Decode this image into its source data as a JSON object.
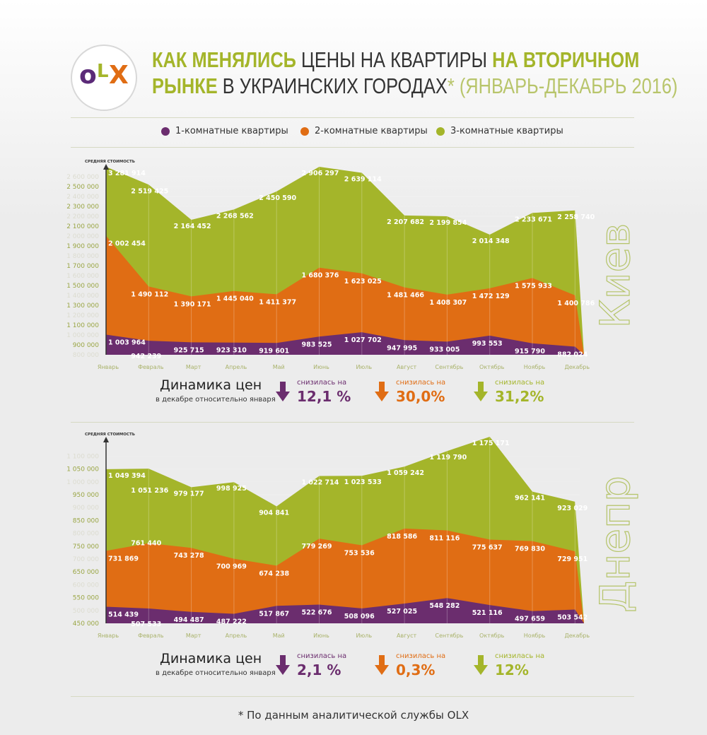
{
  "header": {
    "logo": "OLX",
    "title_line1_bold": "КАК МЕНЯЛИСЬ",
    "title_line1_regular": "ЦЕНЫ НА КВАРТИРЫ",
    "title_line1_bold2": "НА ВТОРИЧНОМ",
    "title_line2_bold": "РЫНКЕ",
    "title_line2_regular": "В УКРАИНСКИХ ГОРОДАХ",
    "title_line2_light": "* (ЯНВАРЬ-ДЕКАБРЬ 2016)"
  },
  "legend": [
    {
      "label": "1-комнатные квартиры",
      "color": "#6b2d6e"
    },
    {
      "label": "2-комнатные квартиры",
      "color": "#e06d14"
    },
    {
      "label": "3-комнатные квартиры",
      "color": "#a4b52a"
    }
  ],
  "chart_data": [
    {
      "type": "area",
      "city": "Киев",
      "ylabel": "СРЕДНЯЯ СТОИМОСТЬ",
      "categories": [
        "Январь",
        "Февраль",
        "Март",
        "Апрель",
        "Май",
        "Июнь",
        "Июль",
        "Август",
        "Сентябрь",
        "Октябрь",
        "Ноябрь",
        "Декабрь"
      ],
      "yticks": [
        "800 000",
        "900 000",
        "1 000 000",
        "1 100 000",
        "1 200 000",
        "1 300 000",
        "1 400 000",
        "1 500 000",
        "1 600 000",
        "1 700 000",
        "1 800 000",
        "1 900 000",
        "2 000 000",
        "2 100 000",
        "2 200 000",
        "2 300 000",
        "2 400 000",
        "2 500 000",
        "2 600 000"
      ],
      "ylim": [
        800000,
        2700000
      ],
      "series": [
        {
          "name": "3-комнатные квартиры",
          "color": "#a4b52a",
          "values": [
            3281914,
            2519425,
            2164452,
            2268562,
            2450590,
            2906297,
            2639114,
            2207682,
            2199854,
            2014348,
            2233671,
            2258740
          ],
          "labels": [
            "3 281 914",
            "2 519 425",
            "2 164 452",
            "2 268 562",
            "2 450 590",
            "2 906 297",
            "2 639 114",
            "2 207 682",
            "2 199 854",
            "2 014 348",
            "2 233 671",
            "2 258 740"
          ]
        },
        {
          "name": "2-комнатные квартиры",
          "color": "#e06d14",
          "values": [
            2002454,
            1490112,
            1390171,
            1445040,
            1411377,
            1680376,
            1623025,
            1481466,
            1408307,
            1472129,
            1575933,
            1400786
          ],
          "labels": [
            "2 002 454",
            "1 490 112",
            "1 390 171",
            "1 445 040",
            "1 411 377",
            "1 680 376",
            "1 623 025",
            "1 481 466",
            "1 408 307",
            "1 472 129",
            "1 575 933",
            "1 400 786"
          ]
        },
        {
          "name": "1-комнатные квартиры",
          "color": "#6b2d6e",
          "values": [
            1003964,
            942239,
            925715,
            923310,
            919601,
            983525,
            1027702,
            947995,
            933005,
            993553,
            915790,
            882024
          ],
          "labels": [
            "1 003 964",
            "942 239",
            "925 715",
            "923 310",
            "919 601",
            "983 525",
            "1 027 702",
            "947 995",
            "933 005",
            "993 553",
            "915 790",
            "882 024"
          ]
        }
      ]
    },
    {
      "type": "area",
      "city": "Днепр",
      "ylabel": "СРЕДНЯЯ СТОИМОСТЬ",
      "categories": [
        "Январь",
        "Февраль",
        "Март",
        "Апрель",
        "Май",
        "Июнь",
        "Июль",
        "Август",
        "Сентябрь",
        "Октябрь",
        "Ноябрь",
        "Декабрь"
      ],
      "yticks": [
        "450 000",
        "500 000",
        "550 000",
        "600 000",
        "650 000",
        "700 000",
        "750 000",
        "800 000",
        "850 000",
        "900 000",
        "950 000",
        "1 000 000",
        "1 050 000",
        "1 100 000"
      ],
      "ylim": [
        450000,
        1180000
      ],
      "series": [
        {
          "name": "3-комнатные квартиры",
          "color": "#a4b52a",
          "values": [
            1049394,
            1051236,
            979177,
            998925,
            904841,
            1022714,
            1023533,
            1059242,
            1119790,
            1175171,
            962141,
            923029
          ],
          "labels": [
            "1 049 394",
            "1 051 236",
            "979 177",
            "998 925",
            "904 841",
            "1 022 714",
            "1 023 533",
            "1 059 242",
            "1 119 790",
            "1 175 171",
            "962 141",
            "923 029"
          ]
        },
        {
          "name": "2-комнатные квартиры",
          "color": "#e06d14",
          "values": [
            731869,
            761440,
            743278,
            700969,
            674238,
            779269,
            753536,
            818586,
            811116,
            775637,
            769830,
            729951
          ],
          "labels": [
            "731 869",
            "761 440",
            "743 278",
            "700 969",
            "674 238",
            "779 269",
            "753 536",
            "818 586",
            "811 116",
            "775 637",
            "769 830",
            "729 951"
          ]
        },
        {
          "name": "1-комнатные квартиры",
          "color": "#6b2d6e",
          "values": [
            514439,
            507533,
            494487,
            487222,
            517867,
            522676,
            508096,
            527025,
            548282,
            521116,
            497659,
            503542
          ],
          "labels": [
            "514 439",
            "507 533",
            "494 487",
            "487 222",
            "517 867",
            "522 676",
            "508 096",
            "527 025",
            "548 282",
            "521 116",
            "497 659",
            "503 542"
          ]
        }
      ]
    }
  ],
  "dynamics": [
    {
      "title": "Динамика цен",
      "subtitle": "в декабре относительно января",
      "items": [
        {
          "caption": "снизилась на",
          "value": "12,1 %",
          "color": "#6b2d6e"
        },
        {
          "caption": "снизилась на",
          "value": "30,0%",
          "color": "#e06d14"
        },
        {
          "caption": "снизилась на",
          "value": "31,2%",
          "color": "#a4b52a"
        }
      ]
    },
    {
      "title": "Динамика цен",
      "subtitle": "в декабре относительно января",
      "items": [
        {
          "caption": "снизилась на",
          "value": "2,1 %",
          "color": "#6b2d6e"
        },
        {
          "caption": "снизилась на",
          "value": "0,3%",
          "color": "#e06d14"
        },
        {
          "caption": "снизилась на",
          "value": "12%",
          "color": "#a4b52a"
        }
      ]
    }
  ],
  "footnote": "* По данным аналитической службы OLX"
}
